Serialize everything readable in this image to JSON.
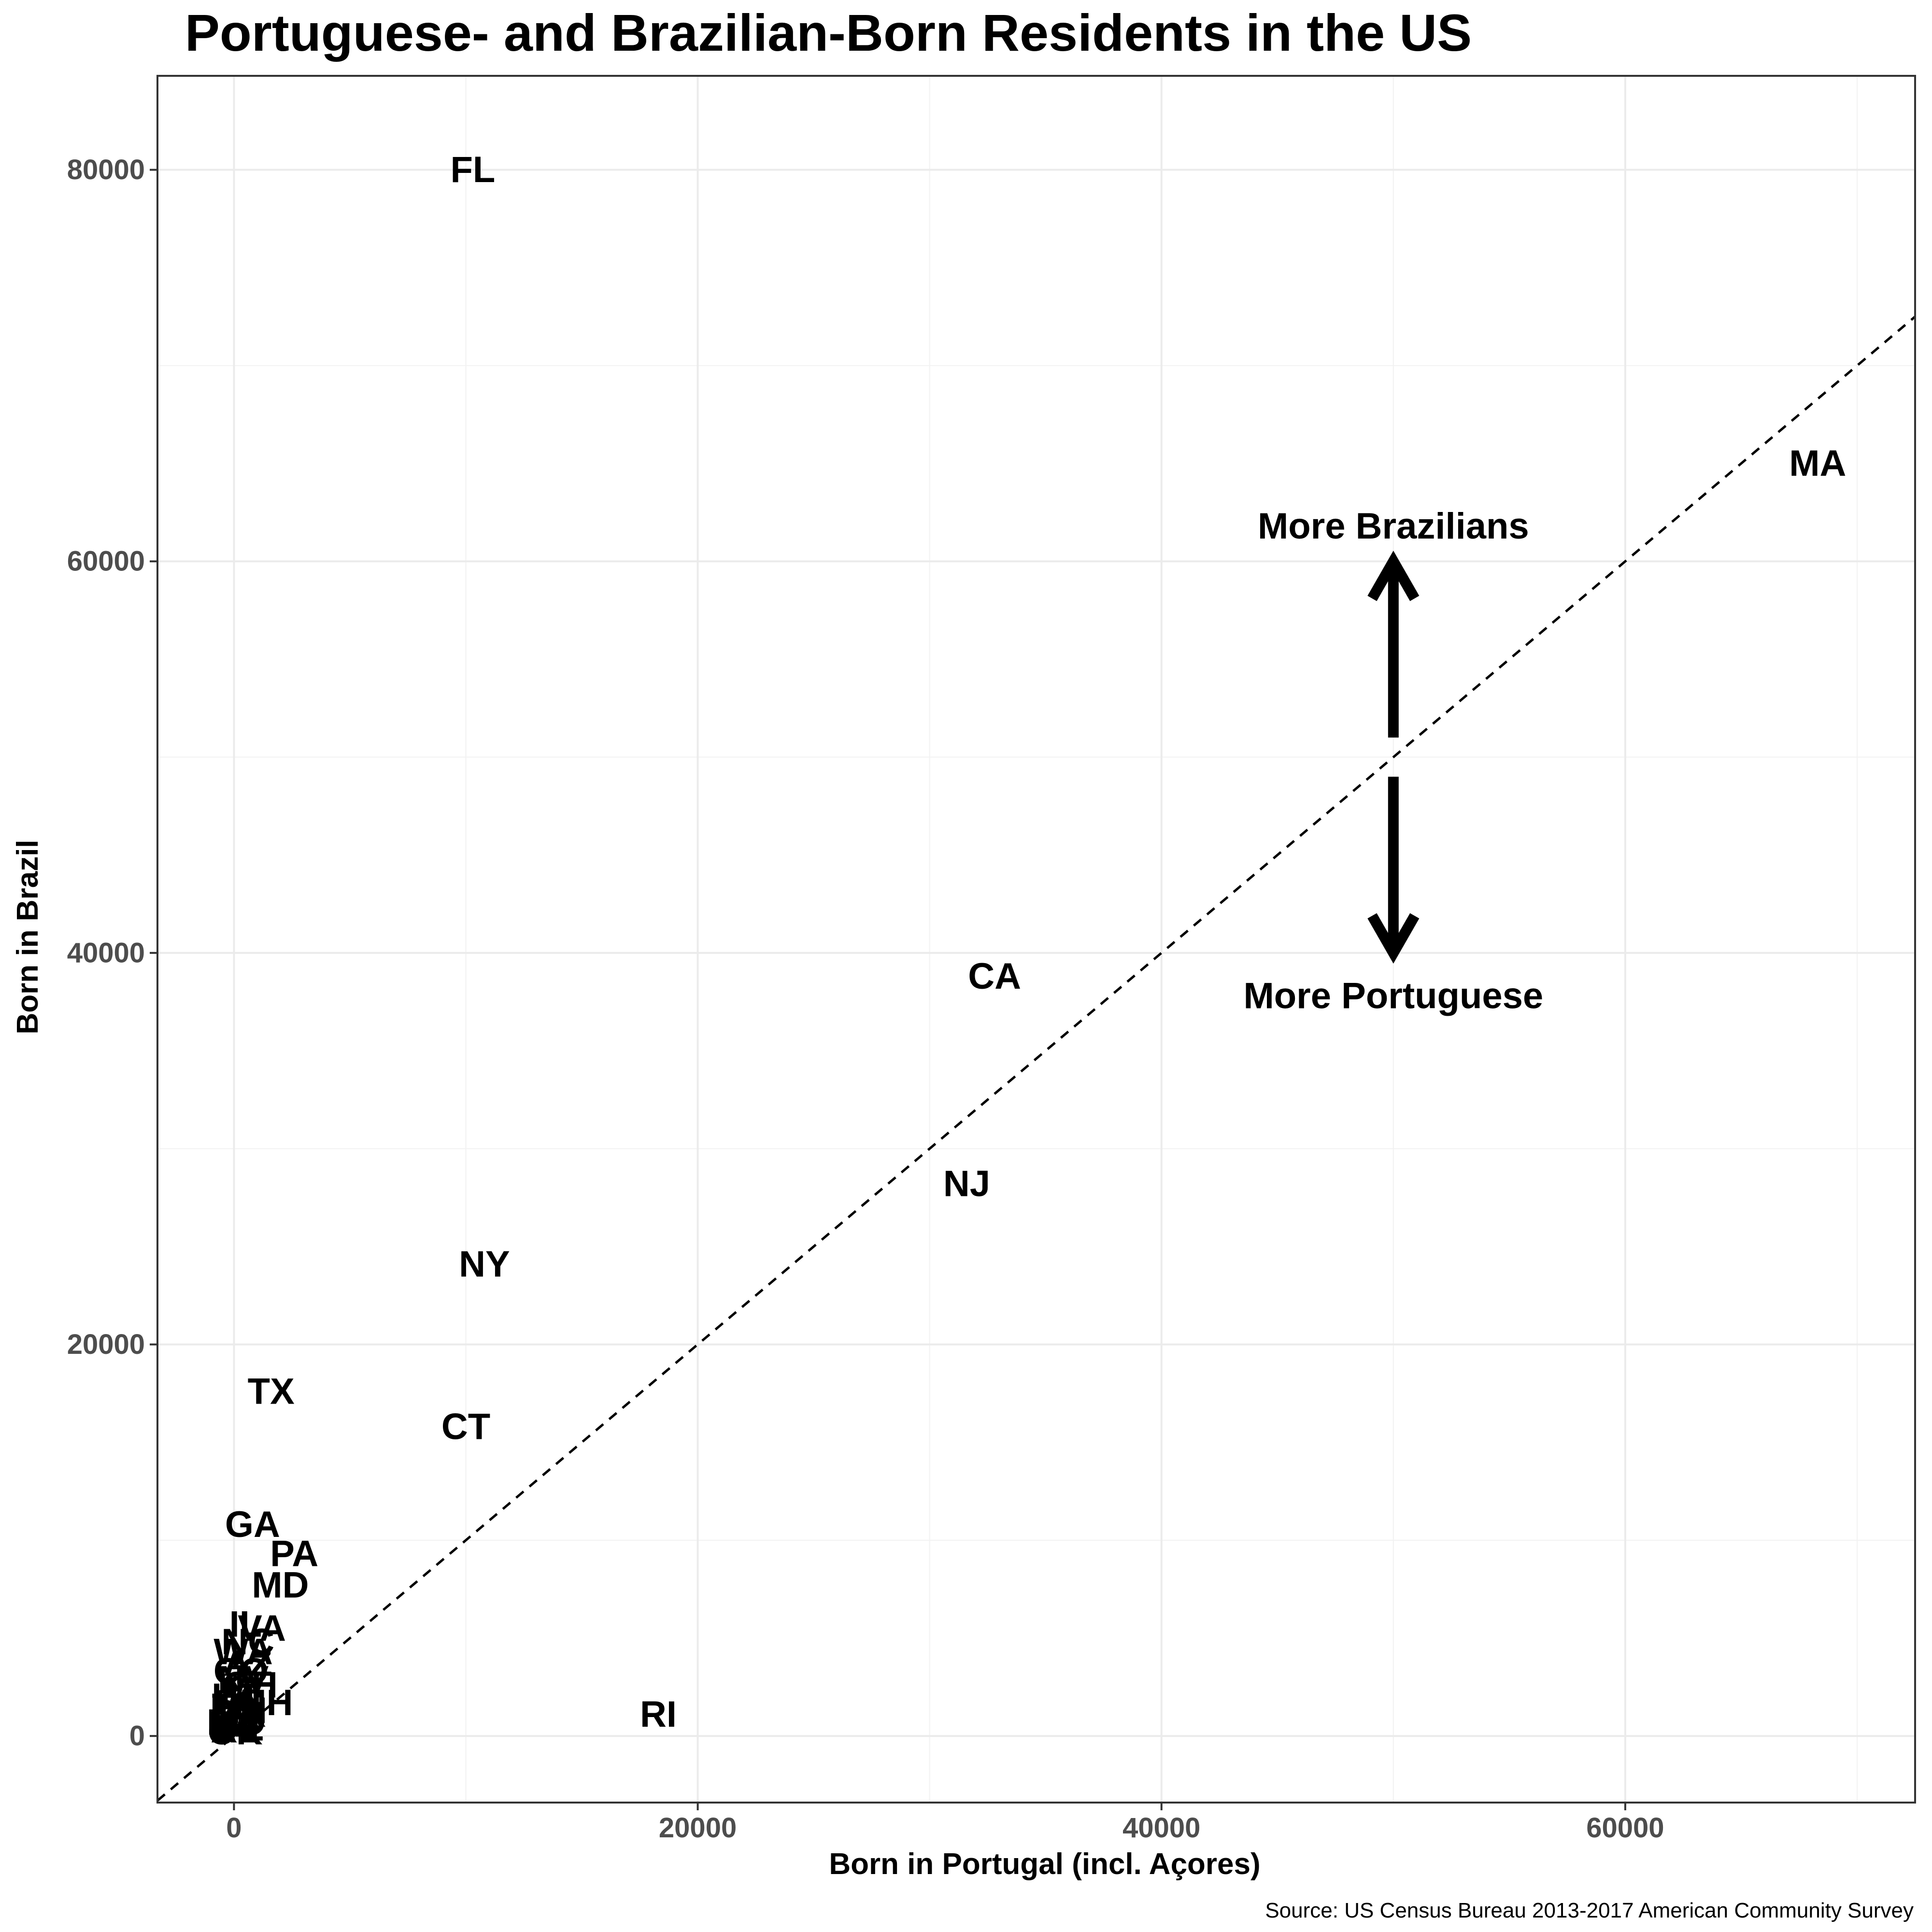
{
  "chart_data": {
    "type": "scatter",
    "title": "Portuguese- and Brazilian-Born Residents in the US",
    "xlabel": "Born in Portugal (incl. Açores)",
    "ylabel": "Born in Brazil",
    "caption": "Source: US Census Bureau 2013-2017 American Community Survey",
    "xlim": [
      -3300,
      72500
    ],
    "ylim": [
      -3400,
      84800
    ],
    "x_ticks": [
      0,
      20000,
      40000,
      60000
    ],
    "y_ticks": [
      0,
      20000,
      40000,
      60000,
      80000
    ],
    "grid": true,
    "markers": "state abbreviations as text labels",
    "reference_line": {
      "style": "dashed",
      "slope": 1,
      "intercept": 0
    },
    "points": [
      {
        "label": "FL",
        "x": 10300,
        "y": 80000
      },
      {
        "label": "MA",
        "x": 68300,
        "y": 65000
      },
      {
        "label": "CA",
        "x": 32800,
        "y": 38800
      },
      {
        "label": "NJ",
        "x": 31600,
        "y": 28200
      },
      {
        "label": "NY",
        "x": 10800,
        "y": 24100
      },
      {
        "label": "TX",
        "x": 1600,
        "y": 17600
      },
      {
        "label": "CT",
        "x": 10000,
        "y": 15800
      },
      {
        "label": "RI",
        "x": 18300,
        "y": 1100
      },
      {
        "label": "GA",
        "x": 800,
        "y": 10800
      },
      {
        "label": "PA",
        "x": 2600,
        "y": 9300
      },
      {
        "label": "MD",
        "x": 2000,
        "y": 7700
      },
      {
        "label": "VA",
        "x": 1200,
        "y": 5500
      },
      {
        "label": "IL",
        "x": 500,
        "y": 5700
      },
      {
        "label": "NC",
        "x": 600,
        "y": 4800
      },
      {
        "label": "WA",
        "x": 400,
        "y": 4300
      },
      {
        "label": "AZ",
        "x": 600,
        "y": 3700
      },
      {
        "label": "CO",
        "x": 300,
        "y": 3300
      },
      {
        "label": "NV",
        "x": 400,
        "y": 2900
      },
      {
        "label": "OH",
        "x": 700,
        "y": 2600
      },
      {
        "label": "MI",
        "x": 300,
        "y": 2300
      },
      {
        "label": "NH",
        "x": 1400,
        "y": 1700
      },
      {
        "label": "UT",
        "x": 100,
        "y": 2000
      },
      {
        "label": "SC",
        "x": 200,
        "y": 1700
      },
      {
        "label": "TN",
        "x": 100,
        "y": 1500
      },
      {
        "label": "MN",
        "x": 200,
        "y": 1300
      },
      {
        "label": "OR",
        "x": 200,
        "y": 1100
      },
      {
        "label": "LA",
        "x": 100,
        "y": 900
      },
      {
        "label": "IN",
        "x": 100,
        "y": 800
      },
      {
        "label": "WI",
        "x": 100,
        "y": 600
      },
      {
        "label": "MO",
        "x": 100,
        "y": 700
      },
      {
        "label": "HI",
        "x": 300,
        "y": 500
      },
      {
        "label": "DE",
        "x": 200,
        "y": 400
      },
      {
        "label": "KY",
        "x": 100,
        "y": 300
      },
      {
        "label": "AL",
        "x": 50,
        "y": 300
      },
      {
        "label": "OK",
        "x": 50,
        "y": 200
      }
    ],
    "annotations": [
      {
        "text": "More Brazilians",
        "x": 50000,
        "y": 61800
      },
      {
        "text": "More Portuguese",
        "x": 50000,
        "y": 37800
      }
    ],
    "arrows": [
      {
        "x": 50000,
        "y_from": 51000,
        "y_to": 60000
      },
      {
        "x": 50000,
        "y_from": 49000,
        "y_to": 40000
      }
    ]
  }
}
